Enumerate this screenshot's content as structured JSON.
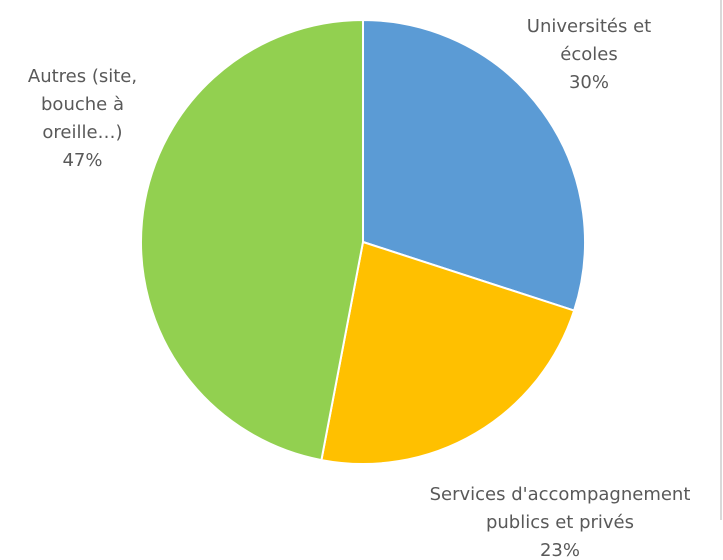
{
  "chart_data": {
    "type": "pie",
    "categories": [
      "Universités et écoles",
      "Services d'accompagnement publics et privés",
      "Autres (site, bouche à oreille…)"
    ],
    "values": [
      30,
      23,
      47
    ],
    "value_labels": [
      "30%",
      "23%",
      "47%"
    ],
    "colors": [
      "#5b9bd5",
      "#ffc000",
      "#92d050"
    ]
  }
}
